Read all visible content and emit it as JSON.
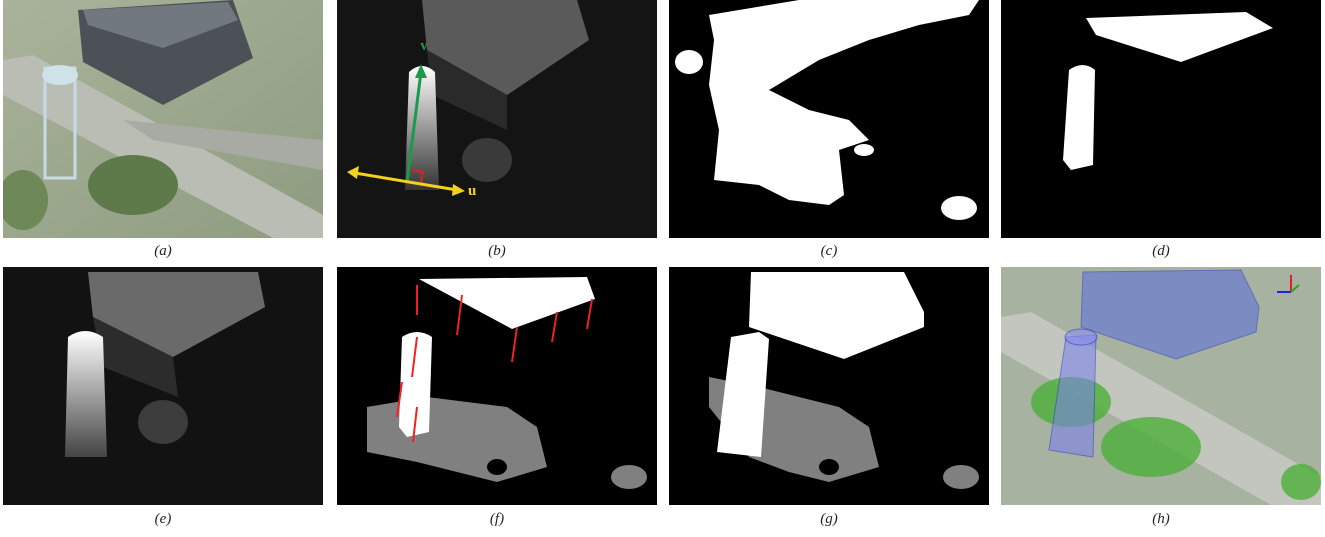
{
  "panels": [
    {
      "caption": "(a)"
    },
    {
      "caption": "(b)",
      "labels": [
        "v",
        "u"
      ]
    },
    {
      "caption": "(c)"
    },
    {
      "caption": "(d)"
    },
    {
      "caption": "(e)"
    },
    {
      "caption": "(f)"
    },
    {
      "caption": "(g)"
    },
    {
      "caption": "(h)"
    }
  ]
}
